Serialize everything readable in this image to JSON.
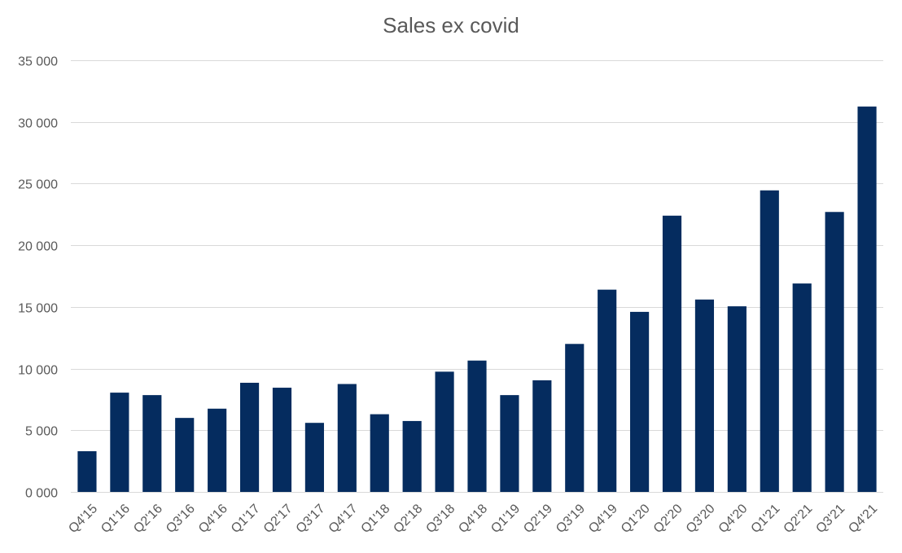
{
  "chart_data": {
    "type": "bar",
    "title": "Sales ex covid",
    "xlabel": "",
    "ylabel": "",
    "categories": [
      "Q4'15",
      "Q1'16",
      "Q2'16",
      "Q3'16",
      "Q4'16",
      "Q1'17",
      "Q2'17",
      "Q3'17",
      "Q4'17",
      "Q1'18",
      "Q2'18",
      "Q3'18",
      "Q4'18",
      "Q1'19",
      "Q2'19",
      "Q3'19",
      "Q4'19",
      "Q1'20",
      "Q2'20",
      "Q3'20",
      "Q4'20",
      "Q1'21",
      "Q2'21",
      "Q3'21",
      "Q4'21"
    ],
    "values": [
      3300,
      8050,
      7850,
      6000,
      6750,
      8850,
      8450,
      5600,
      8750,
      6300,
      5750,
      9750,
      10650,
      7850,
      9050,
      12000,
      16400,
      14600,
      22400,
      15600,
      15050,
      24450,
      16900,
      22700,
      31250
    ],
    "ylim": [
      0,
      35000
    ],
    "yticks": [
      0,
      5000,
      10000,
      15000,
      20000,
      25000,
      30000,
      35000
    ],
    "ytick_labels": [
      "0 000",
      "5 000",
      "10 000",
      "15 000",
      "20 000",
      "25 000",
      "30 000",
      "35 000"
    ],
    "grid": true,
    "legend": "none",
    "bar_color": "#052c5f"
  }
}
